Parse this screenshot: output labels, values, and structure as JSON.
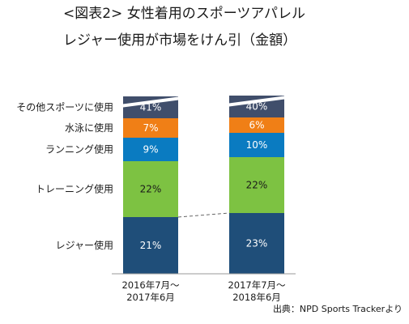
{
  "chart_data": {
    "type": "bar",
    "stacked": true,
    "title_line1": "<図表2> 女性着用のスポーツアパレル",
    "title_line2": "レジャー使用が市場をけん引（金額）",
    "categories": [
      "2016年7月～\n2017年6月",
      "2017年7月～\n2018年6月"
    ],
    "series": [
      {
        "name": "レジャー使用",
        "values": [
          21,
          23
        ],
        "color": "#1f4e79",
        "labels": [
          "21%",
          "23%"
        ],
        "label_color": "#ffffff"
      },
      {
        "name": "トレーニング使用",
        "values": [
          22,
          22
        ],
        "color": "#7dc242",
        "labels": [
          "22%",
          "22%"
        ],
        "label_color": "#1a1a1a"
      },
      {
        "name": "ランニング使用",
        "values": [
          9,
          10
        ],
        "color": "#0a7bc1",
        "labels": [
          "9%",
          "10%"
        ],
        "label_color": "#ffffff"
      },
      {
        "name": "水泳に使用",
        "values": [
          7,
          6
        ],
        "color": "#f07f16",
        "labels": [
          "7%",
          "6%"
        ],
        "label_color": "#ffffff"
      },
      {
        "name": "その他スポーツに使用",
        "values": [
          41,
          40
        ],
        "color": "#404e6b",
        "labels": [
          "41%",
          "40%"
        ],
        "label_color": "#ffffff",
        "axis_break": true
      }
    ],
    "connector_line": "dashed line between top of レジャー使用 segments",
    "source": "出典：NPD Sports Trackerより"
  }
}
